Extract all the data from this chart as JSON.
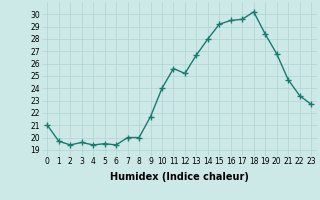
{
  "x": [
    0,
    1,
    2,
    3,
    4,
    5,
    6,
    7,
    8,
    9,
    10,
    11,
    12,
    13,
    14,
    15,
    16,
    17,
    18,
    19,
    20,
    21,
    22,
    23
  ],
  "y": [
    21,
    19.7,
    19.4,
    19.6,
    19.4,
    19.5,
    19.4,
    20.0,
    20.0,
    21.7,
    24.0,
    25.6,
    25.2,
    26.7,
    28.0,
    29.2,
    29.5,
    29.6,
    30.2,
    28.4,
    26.8,
    24.7,
    23.4,
    22.7
  ],
  "line_color": "#1a7a6e",
  "marker": "+",
  "marker_size": 4,
  "linewidth": 1.0,
  "xlabel": "Humidex (Indice chaleur)",
  "xlabel_fontsize": 7,
  "xlabel_fontweight": "bold",
  "ylim": [
    18.5,
    31.0
  ],
  "xlim": [
    -0.5,
    23.5
  ],
  "yticks": [
    19,
    20,
    21,
    22,
    23,
    24,
    25,
    26,
    27,
    28,
    29,
    30
  ],
  "xticks": [
    0,
    1,
    2,
    3,
    4,
    5,
    6,
    7,
    8,
    9,
    10,
    11,
    12,
    13,
    14,
    15,
    16,
    17,
    18,
    19,
    20,
    21,
    22,
    23
  ],
  "xtick_labels": [
    "0",
    "1",
    "2",
    "3",
    "4",
    "5",
    "6",
    "7",
    "8",
    "9",
    "10",
    "11",
    "12",
    "13",
    "14",
    "15",
    "16",
    "17",
    "18",
    "19",
    "20",
    "21",
    "22",
    "23"
  ],
  "background_color": "#cce9e7",
  "grid_color": "#aed4d2",
  "tick_fontsize": 5.5,
  "marker_color": "#1a7a6e"
}
